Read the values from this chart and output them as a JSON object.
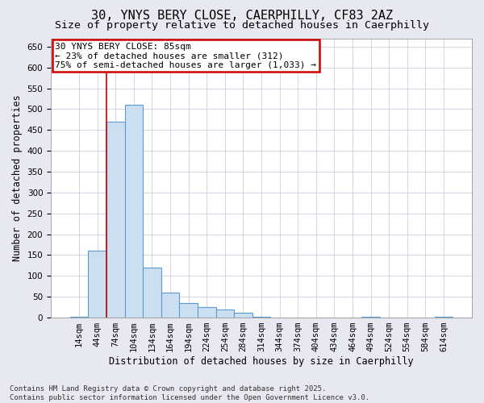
{
  "title_line1": "30, YNYS BERY CLOSE, CAERPHILLY, CF83 2AZ",
  "title_line2": "Size of property relative to detached houses in Caerphilly",
  "xlabel": "Distribution of detached houses by size in Caerphilly",
  "ylabel": "Number of detached properties",
  "bin_labels": [
    "14sqm",
    "44sqm",
    "74sqm",
    "104sqm",
    "134sqm",
    "164sqm",
    "194sqm",
    "224sqm",
    "254sqm",
    "284sqm",
    "314sqm",
    "344sqm",
    "374sqm",
    "404sqm",
    "434sqm",
    "464sqm",
    "494sqm",
    "524sqm",
    "554sqm",
    "584sqm",
    "614sqm"
  ],
  "bar_heights": [
    2,
    160,
    470,
    510,
    120,
    60,
    35,
    25,
    20,
    12,
    2,
    0,
    0,
    0,
    0,
    0,
    2,
    0,
    0,
    0,
    2
  ],
  "bar_color": "#ccdff0",
  "bar_edge_color": "#5b9bd5",
  "annotation_line1": "30 YNYS BERY CLOSE: 85sqm",
  "annotation_line2": "← 23% of detached houses are smaller (312)",
  "annotation_line3": "75% of semi-detached houses are larger (1,033) →",
  "annotation_box_color": "#ffffff",
  "annotation_box_edge_color": "#cc0000",
  "vline_color": "#cc0000",
  "vline_x_index": 1.5,
  "ylim": [
    0,
    670
  ],
  "yticks": [
    0,
    50,
    100,
    150,
    200,
    250,
    300,
    350,
    400,
    450,
    500,
    550,
    600,
    650
  ],
  "plot_bg_color": "#ffffff",
  "fig_bg_color": "#e8e8f0",
  "grid_color": "#ccccdd",
  "footer_text": "Contains HM Land Registry data © Crown copyright and database right 2025.\nContains public sector information licensed under the Open Government Licence v3.0.",
  "title_fontsize": 11,
  "subtitle_fontsize": 9.5,
  "axis_label_fontsize": 8.5,
  "tick_fontsize": 7.5,
  "annotation_fontsize": 8,
  "footer_fontsize": 6.5
}
